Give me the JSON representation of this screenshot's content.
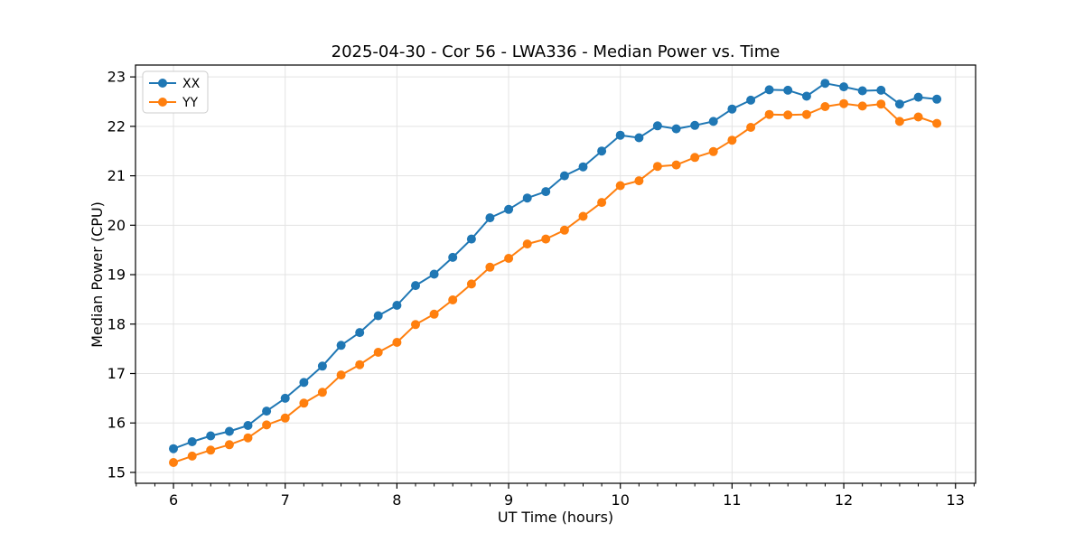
{
  "chart_data": {
    "type": "line",
    "title": "2025-04-30 - Cor 56 - LWA336 - Median Power vs. Time",
    "xlabel": "UT Time (hours)",
    "ylabel": "Median Power (CPU)",
    "xlim": [
      5.66,
      13.18
    ],
    "ylim": [
      14.78,
      23.24
    ],
    "xticks": [
      6,
      7,
      8,
      9,
      10,
      11,
      12,
      13
    ],
    "yticks": [
      15,
      16,
      17,
      18,
      19,
      20,
      21,
      22,
      23
    ],
    "x_minor_step": 0.166667,
    "grid": true,
    "grid_color": "#e3e3e3",
    "legend_position": "upper-left",
    "background_color": "#ffffff",
    "x": [
      6.0,
      6.167,
      6.333,
      6.5,
      6.667,
      6.833,
      7.0,
      7.167,
      7.333,
      7.5,
      7.667,
      7.833,
      8.0,
      8.167,
      8.333,
      8.5,
      8.667,
      8.833,
      9.0,
      9.167,
      9.333,
      9.5,
      9.667,
      9.833,
      10.0,
      10.167,
      10.333,
      10.5,
      10.667,
      10.833,
      11.0,
      11.167,
      11.333,
      11.5,
      11.667,
      11.833,
      12.0,
      12.167,
      12.333,
      12.5,
      12.667,
      12.833
    ],
    "series": [
      {
        "name": "XX",
        "color": "#1f77b4",
        "values": [
          15.48,
          15.62,
          15.74,
          15.83,
          15.95,
          16.24,
          16.5,
          16.82,
          17.15,
          17.57,
          17.83,
          18.17,
          18.38,
          18.78,
          19.01,
          19.35,
          19.72,
          20.15,
          20.32,
          20.55,
          20.68,
          21.0,
          21.18,
          21.5,
          21.82,
          21.77,
          22.01,
          21.95,
          22.02,
          22.1,
          22.35,
          22.53,
          22.74,
          22.73,
          22.61,
          22.87,
          22.8,
          22.72,
          22.73,
          22.45,
          22.59,
          22.55
        ]
      },
      {
        "name": "YY",
        "color": "#ff7f0e",
        "values": [
          15.2,
          15.33,
          15.45,
          15.56,
          15.7,
          15.96,
          16.1,
          16.4,
          16.62,
          16.97,
          17.18,
          17.43,
          17.63,
          17.99,
          18.2,
          18.49,
          18.81,
          19.15,
          19.33,
          19.62,
          19.72,
          19.9,
          20.18,
          20.46,
          20.8,
          20.9,
          21.19,
          21.22,
          21.37,
          21.49,
          21.72,
          21.98,
          22.24,
          22.23,
          22.24,
          22.4,
          22.46,
          22.41,
          22.45,
          22.1,
          22.19,
          22.06
        ]
      }
    ]
  }
}
